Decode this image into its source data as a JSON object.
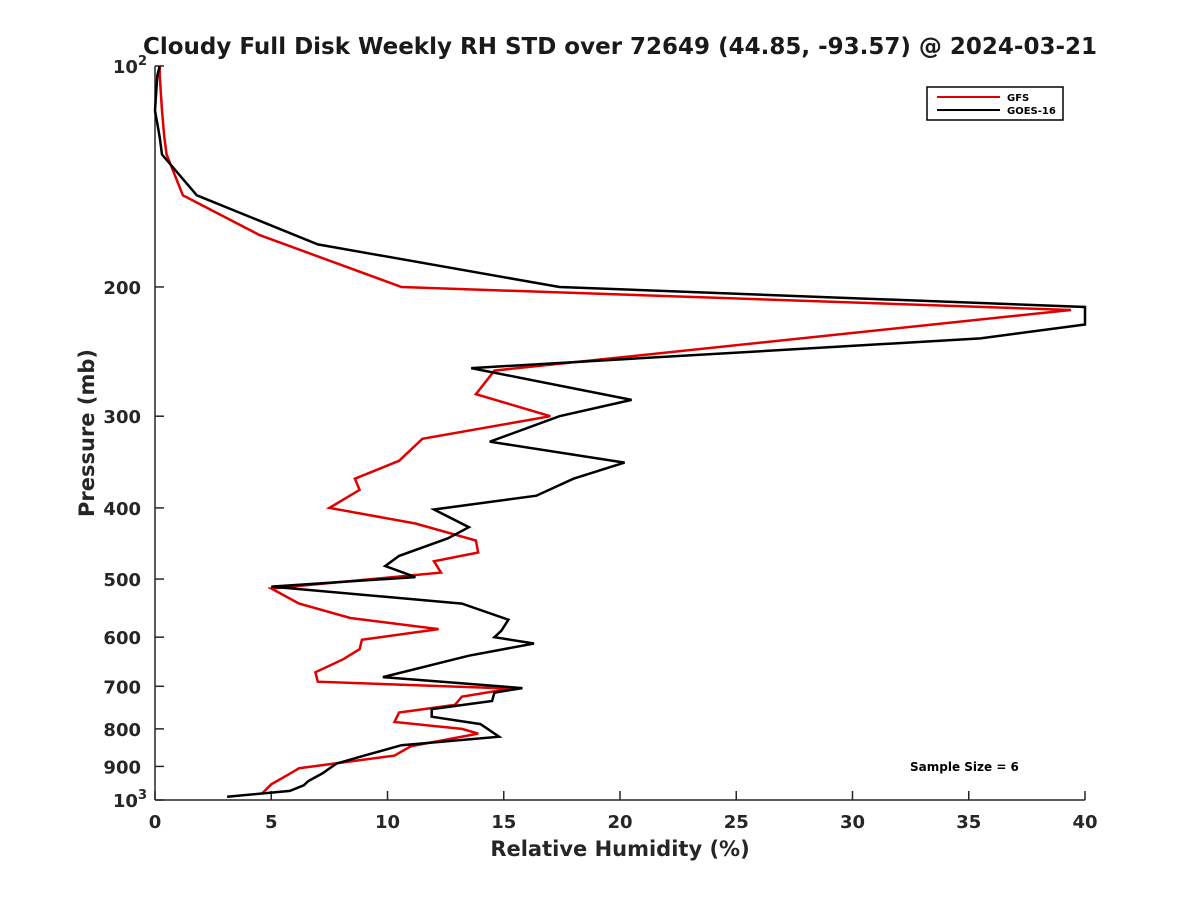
{
  "chart_data": {
    "type": "line",
    "title": "Cloudy Full Disk Weekly RH STD over 72649 (44.85, -93.57) @ 2024-03-21",
    "xlabel": "Relative Humidity (%)",
    "ylabel": "Pressure (mb)",
    "xlim": [
      0,
      40
    ],
    "ylim": [
      100,
      1000
    ],
    "y_scale": "log",
    "y_reversed": true,
    "x_ticks": [
      "0",
      "5",
      "10",
      "15",
      "20",
      "25",
      "30",
      "35",
      "40"
    ],
    "y_ticks": [
      {
        "value": 100,
        "label": "10",
        "exp": "2"
      },
      {
        "value": 200,
        "label": "200"
      },
      {
        "value": 300,
        "label": "300"
      },
      {
        "value": 400,
        "label": "400"
      },
      {
        "value": 500,
        "label": "500"
      },
      {
        "value": 600,
        "label": "600"
      },
      {
        "value": 700,
        "label": "700"
      },
      {
        "value": 800,
        "label": "800"
      },
      {
        "value": 900,
        "label": "900"
      },
      {
        "value": 1000,
        "label": "10",
        "exp": "3"
      }
    ],
    "grid": false,
    "legend_position": "top-right",
    "annotation": "Sample Size = 6",
    "series": [
      {
        "name": "GFS",
        "color": "#e00000",
        "points": [
          [
            0.2,
            100
          ],
          [
            0.2,
            103
          ],
          [
            0.3,
            115
          ],
          [
            0.4,
            125
          ],
          [
            0.5,
            132
          ],
          [
            1.2,
            150
          ],
          [
            4.5,
            170
          ],
          [
            10.6,
            200
          ],
          [
            39.4,
            215
          ],
          [
            14.6,
            260
          ],
          [
            13.8,
            280
          ],
          [
            17.0,
            300
          ],
          [
            11.5,
            322
          ],
          [
            10.5,
            345
          ],
          [
            8.6,
            365
          ],
          [
            8.8,
            378
          ],
          [
            7.5,
            400
          ],
          [
            11.2,
            420
          ],
          [
            13.8,
            443
          ],
          [
            13.9,
            460
          ],
          [
            12.0,
            473
          ],
          [
            12.3,
            490
          ],
          [
            5.0,
            515
          ],
          [
            6.2,
            540
          ],
          [
            8.4,
            565
          ],
          [
            12.2,
            585
          ],
          [
            8.9,
            605
          ],
          [
            8.8,
            623
          ],
          [
            8.1,
            643
          ],
          [
            6.9,
            670
          ],
          [
            7.0,
            690
          ],
          [
            15.3,
            705
          ],
          [
            13.2,
            723
          ],
          [
            12.9,
            742
          ],
          [
            10.5,
            760
          ],
          [
            10.3,
            783
          ],
          [
            13.2,
            800
          ],
          [
            13.9,
            812
          ],
          [
            11.0,
            845
          ],
          [
            10.3,
            870
          ],
          [
            6.2,
            905
          ],
          [
            5.7,
            925
          ],
          [
            5.0,
            952
          ],
          [
            4.6,
            980
          ]
        ]
      },
      {
        "name": "GOES-16",
        "color": "#000000",
        "points": [
          [
            0.2,
            100
          ],
          [
            0.1,
            103
          ],
          [
            0.0,
            115
          ],
          [
            0.2,
            125
          ],
          [
            0.3,
            132
          ],
          [
            1.8,
            150
          ],
          [
            7.0,
            175
          ],
          [
            17.4,
            200
          ],
          [
            40.0,
            213
          ],
          [
            40.0,
            225
          ],
          [
            35.5,
            235
          ],
          [
            13.6,
            258
          ],
          [
            20.5,
            285
          ],
          [
            17.4,
            300
          ],
          [
            14.4,
            325
          ],
          [
            20.2,
            347
          ],
          [
            18.0,
            365
          ],
          [
            16.4,
            385
          ],
          [
            12.0,
            402
          ],
          [
            13.5,
            425
          ],
          [
            12.6,
            440
          ],
          [
            10.5,
            465
          ],
          [
            9.9,
            480
          ],
          [
            11.2,
            497
          ],
          [
            5.0,
            512
          ],
          [
            13.2,
            540
          ],
          [
            15.2,
            568
          ],
          [
            14.9,
            588
          ],
          [
            14.6,
            600
          ],
          [
            16.3,
            612
          ],
          [
            13.5,
            636
          ],
          [
            9.8,
            680
          ],
          [
            15.8,
            704
          ],
          [
            14.6,
            714
          ],
          [
            14.5,
            733
          ],
          [
            11.9,
            752
          ],
          [
            11.9,
            770
          ],
          [
            14.0,
            788
          ],
          [
            14.8,
            820
          ],
          [
            10.6,
            842
          ],
          [
            9.0,
            870
          ],
          [
            7.8,
            892
          ],
          [
            7.2,
            920
          ],
          [
            6.6,
            942
          ],
          [
            6.4,
            955
          ],
          [
            5.8,
            972
          ],
          [
            3.1,
            990
          ]
        ]
      }
    ]
  }
}
